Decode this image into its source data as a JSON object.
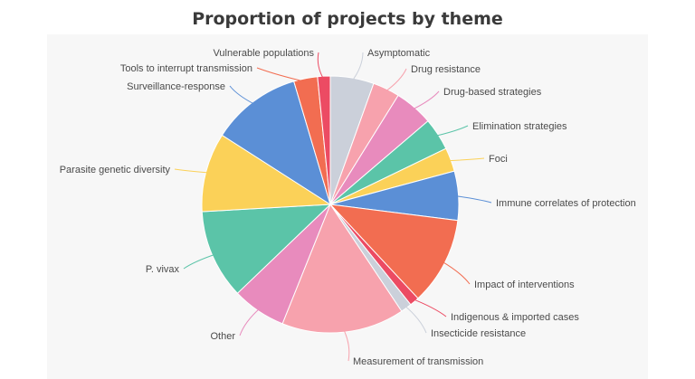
{
  "chart_data": {
    "type": "pie",
    "title": "Proportion of projects by theme",
    "slices": [
      {
        "label": "Asymptomatic",
        "value": 5.5,
        "color": "#cbd0da"
      },
      {
        "label": "Drug resistance",
        "value": 3.4,
        "color": "#f7a2ad"
      },
      {
        "label": "Drug-based strategies",
        "value": 4.9,
        "color": "#e88bbd"
      },
      {
        "label": "Elimination strategies",
        "value": 4.1,
        "color": "#5bc4a8"
      },
      {
        "label": "Foci",
        "value": 3.0,
        "color": "#fbd158"
      },
      {
        "label": "Immune correlates of protection",
        "value": 6.2,
        "color": "#5b8fd6"
      },
      {
        "label": "Impact of interventions",
        "value": 11.1,
        "color": "#f26d51"
      },
      {
        "label": "Indigenous & imported cases",
        "value": 1.2,
        "color": "#ec4b63"
      },
      {
        "label": "Insecticide resistance",
        "value": 1.4,
        "color": "#cbd0da"
      },
      {
        "label": "Measurement of transmission",
        "value": 15.5,
        "color": "#f7a2ad"
      },
      {
        "label": "Other",
        "value": 6.8,
        "color": "#e88bbd"
      },
      {
        "label": "P. vivax",
        "value": 11.3,
        "color": "#5bc4a8"
      },
      {
        "label": "Parasite genetic diversity",
        "value": 10.0,
        "color": "#fbd158"
      },
      {
        "label": "Surveillance-response",
        "value": 11.4,
        "color": "#5b8fd6"
      },
      {
        "label": "Tools to interrupt transmission",
        "value": 3.0,
        "color": "#f26d51"
      },
      {
        "label": "Vulnerable populations",
        "value": 1.6,
        "color": "#ec4b63"
      }
    ]
  }
}
